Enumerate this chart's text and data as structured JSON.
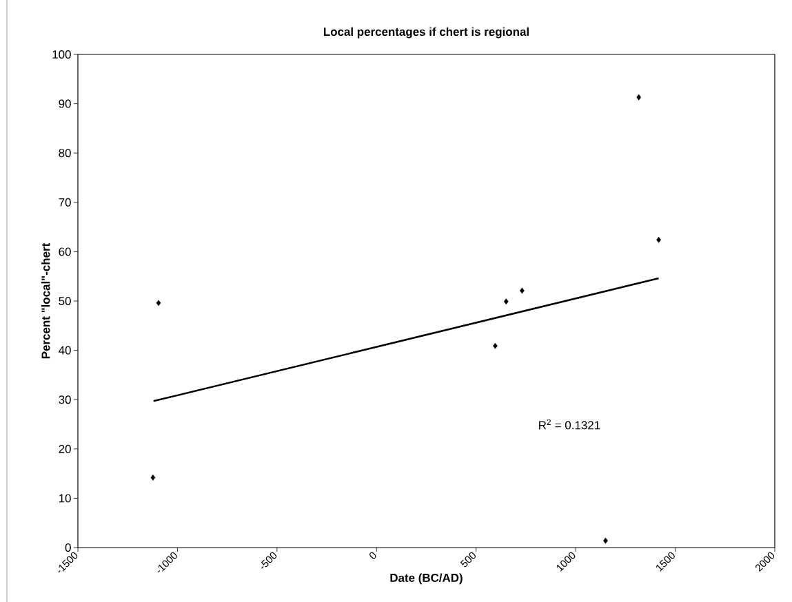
{
  "chart_data": {
    "type": "scatter",
    "title": "Local percentages if chert is regional",
    "xlabel": "Date (BC/AD)",
    "ylabel": "Percent \"local\"-chert",
    "x": [
      -1123,
      -1095,
      596,
      651,
      731,
      1150,
      1317,
      1417
    ],
    "series": [
      {
        "color": "#000000",
        "marker": "diamond",
        "values": [
          14.2,
          49.6,
          40.9,
          49.9,
          52.1,
          1.4,
          91.3,
          62.4
        ]
      },
      {
        "type": "line",
        "color": "#000000",
        "x": [
          -1120,
          1417
        ],
        "values": [
          29.7,
          54.6
        ]
      }
    ],
    "xlim": [
      -1500,
      2000
    ],
    "xticks": [
      -1500,
      -1000,
      -500,
      0,
      500,
      1000,
      1500,
      2000
    ],
    "ylim": [
      0,
      100
    ],
    "yticks": [
      0,
      10,
      20,
      30,
      40,
      50,
      60,
      70,
      80,
      90,
      100
    ],
    "annotations": [
      "R$^{2}$ = 0.1321"
    ]
  }
}
